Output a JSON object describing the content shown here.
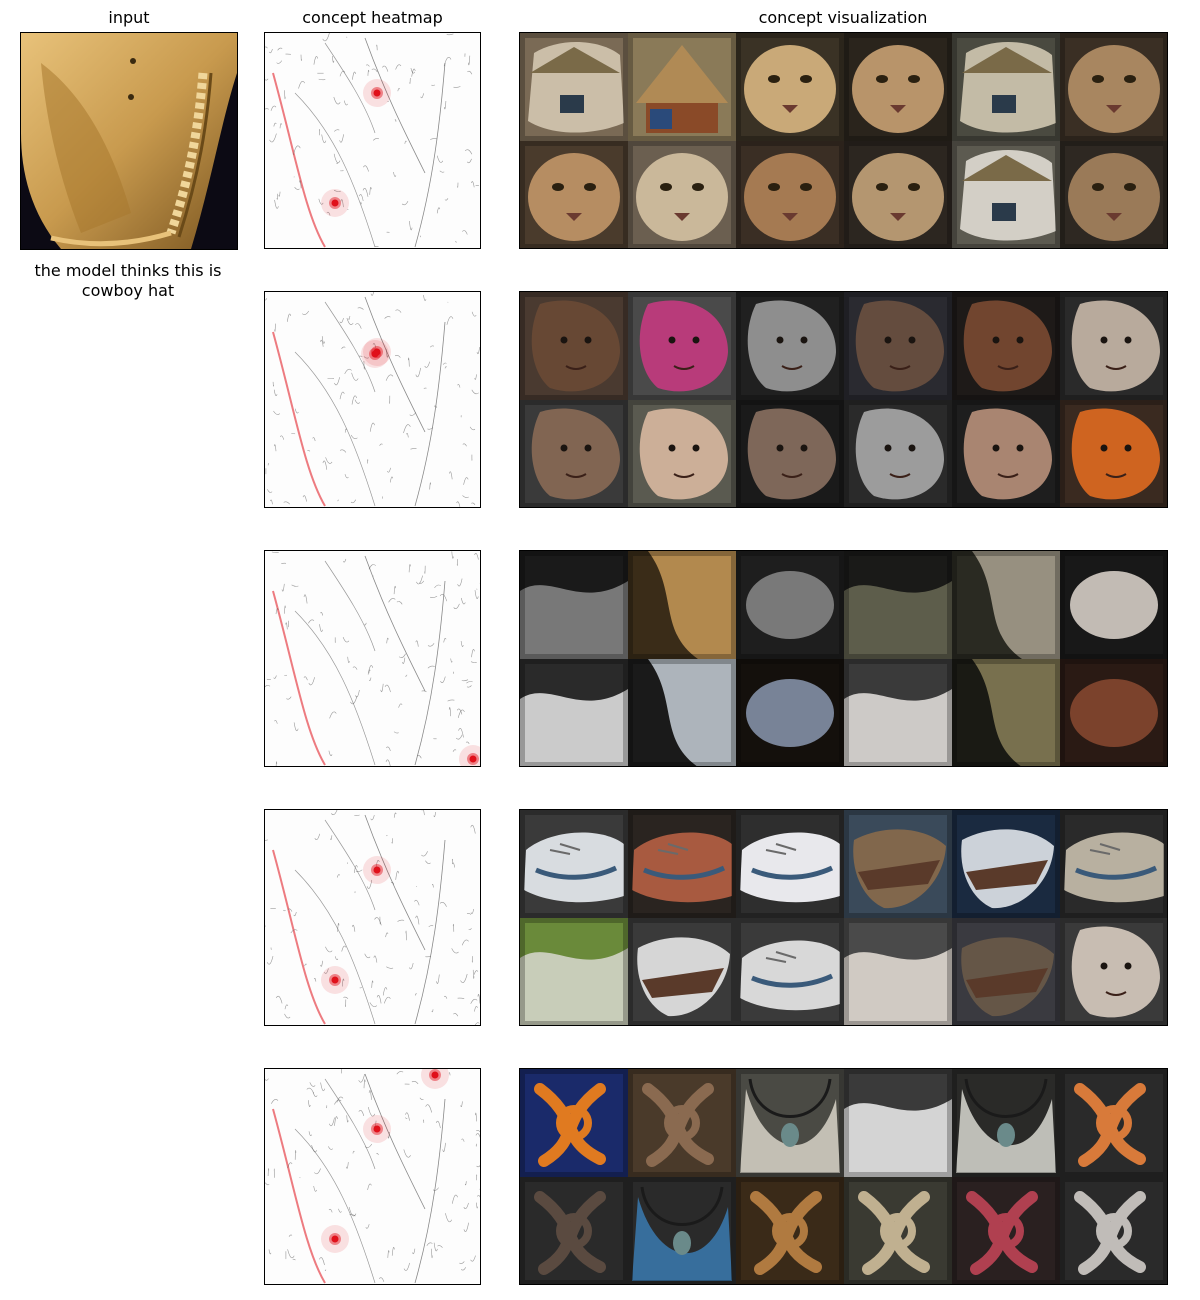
{
  "headers": {
    "input": "input",
    "heatmap": "concept heatmap",
    "visualization": "concept visualization"
  },
  "caption": {
    "line1": "the model thinks this is",
    "line2": "cowboy hat"
  },
  "colors": {
    "heatmap_red": "#e0101a",
    "hat_gold": "#c89a4e",
    "background": "#ffffff"
  },
  "concepts": [
    {
      "heat_spots": [
        "upper-center",
        "center"
      ],
      "tiles": [
        {
          "bg": "#7a6a55",
          "fg": "#d9cdb7",
          "shape": "house"
        },
        {
          "bg": "#8a7a58",
          "fg": "#b08a55",
          "shape": "hut"
        },
        {
          "bg": "#3a3225",
          "fg": "#c9a978",
          "shape": "cat"
        },
        {
          "bg": "#2a241c",
          "fg": "#b8946a",
          "shape": "cat"
        },
        {
          "bg": "#4a4a40",
          "fg": "#d8cfb8",
          "shape": "house"
        },
        {
          "bg": "#3a2f24",
          "fg": "#a88660",
          "shape": "cat"
        },
        {
          "bg": "#4a3b2c",
          "fg": "#b68d62",
          "shape": "cat"
        },
        {
          "bg": "#6b5f50",
          "fg": "#cab89a",
          "shape": "cat"
        },
        {
          "bg": "#3a2e24",
          "fg": "#a57a52",
          "shape": "cat"
        },
        {
          "bg": "#2c2620",
          "fg": "#b49670",
          "shape": "cat"
        },
        {
          "bg": "#5c5a50",
          "fg": "#e8e4da",
          "shape": "house"
        },
        {
          "bg": "#2e2822",
          "fg": "#9a7a58",
          "shape": "cat"
        }
      ]
    },
    {
      "heat_spots": [
        "upper-center",
        "upper-center-2"
      ],
      "tiles": [
        {
          "bg": "#4a3a30",
          "fg": "#6a4a35",
          "shape": "face"
        },
        {
          "bg": "#4a4a4a",
          "fg": "#c43a80",
          "shape": "face"
        },
        {
          "bg": "#202020",
          "fg": "#9a9a9a",
          "shape": "face"
        },
        {
          "bg": "#2a2a30",
          "fg": "#6a5040",
          "shape": "face"
        },
        {
          "bg": "#1e1a18",
          "fg": "#7a4a32",
          "shape": "face"
        },
        {
          "bg": "#2a2a2a",
          "fg": "#c8b8a8",
          "shape": "face"
        },
        {
          "bg": "#3a3a3a",
          "fg": "#8a6a55",
          "shape": "face"
        },
        {
          "bg": "#5a5a50",
          "fg": "#d8b8a0",
          "shape": "face"
        },
        {
          "bg": "#1a1a1a",
          "fg": "#8a7060",
          "shape": "face"
        },
        {
          "bg": "#2a2a2a",
          "fg": "#a8a8a8",
          "shape": "face"
        },
        {
          "bg": "#1e1e1e",
          "fg": "#b8907a",
          "shape": "face"
        },
        {
          "bg": "#3a2a20",
          "fg": "#e06a20",
          "shape": "face"
        }
      ]
    },
    {
      "heat_spots": [
        "bottom-right"
      ],
      "tiles": [
        {
          "bg": "#1a1a1a",
          "fg": "#8a8a8a",
          "shape": "abstract"
        },
        {
          "bg": "#3a2c18",
          "fg": "#c89a58",
          "shape": "abstract"
        },
        {
          "bg": "#1e1e1e",
          "fg": "#8a8a8a",
          "shape": "abstract"
        },
        {
          "bg": "#1a1a18",
          "fg": "#6a6a55",
          "shape": "abstract"
        },
        {
          "bg": "#2a2a22",
          "fg": "#aaa290",
          "shape": "abstract"
        },
        {
          "bg": "#181818",
          "fg": "#e0d8d0",
          "shape": "abstract"
        },
        {
          "bg": "#2a2a2a",
          "fg": "#e8e8e8",
          "shape": "abstract"
        },
        {
          "bg": "#1a1a1a",
          "fg": "#c8d0d8",
          "shape": "abstract"
        },
        {
          "bg": "#14100c",
          "fg": "#8a98b0",
          "shape": "abstract"
        },
        {
          "bg": "#3a3a3a",
          "fg": "#e8e4e0",
          "shape": "abstract"
        },
        {
          "bg": "#1a1a14",
          "fg": "#8a8058",
          "shape": "abstract"
        },
        {
          "bg": "#2a1a14",
          "fg": "#8a4a30",
          "shape": "abstract"
        }
      ]
    },
    {
      "heat_spots": [
        "upper-center",
        "center"
      ],
      "tiles": [
        {
          "bg": "#3a3a3a",
          "fg": "#d8dce0",
          "shape": "shoe"
        },
        {
          "bg": "#2a2420",
          "fg": "#a85a40",
          "shape": "shoe"
        },
        {
          "bg": "#2e2e2e",
          "fg": "#e8e8ec",
          "shape": "shoe"
        },
        {
          "bg": "#3a4a5a",
          "fg": "#8a6a4a",
          "shape": "boat"
        },
        {
          "bg": "#1a2a40",
          "fg": "#e0e4ea",
          "shape": "boat"
        },
        {
          "bg": "#2a2a2a",
          "fg": "#b8b0a0",
          "shape": "shoe"
        },
        {
          "bg": "#6a8a3a",
          "fg": "#d8d8d0",
          "shape": "abstract"
        },
        {
          "bg": "#3a3a3a",
          "fg": "#e8e8e8",
          "shape": "boat"
        },
        {
          "bg": "#3a3a3a",
          "fg": "#d8d8d8",
          "shape": "shoe"
        },
        {
          "bg": "#4a4a4a",
          "fg": "#e8e0d8",
          "shape": "abstract"
        },
        {
          "bg": "#3a3a40",
          "fg": "#6a5a48",
          "shape": "boat"
        },
        {
          "bg": "#3a3a3a",
          "fg": "#d8ccc0",
          "shape": "face"
        }
      ]
    },
    {
      "heat_spots": [
        "top-right",
        "upper-center",
        "center"
      ],
      "tiles": [
        {
          "bg": "#1a2a6a",
          "fg": "#e07a20",
          "shape": "knot"
        },
        {
          "bg": "#4a3a2a",
          "fg": "#8a6a50",
          "shape": "knot"
        },
        {
          "bg": "#4a4a44",
          "fg": "#d8d4c8",
          "shape": "necklace"
        },
        {
          "bg": "#3a3a3a",
          "fg": "#f0f0f0",
          "shape": "abstract"
        },
        {
          "bg": "#2a2a28",
          "fg": "#d8d8d0",
          "shape": "necklace"
        },
        {
          "bg": "#2a2a2a",
          "fg": "#d87a3a",
          "shape": "knot"
        },
        {
          "bg": "#2a2a2a",
          "fg": "#5a4a40",
          "shape": "knot"
        },
        {
          "bg": "#2a2a2a",
          "fg": "#3a7ab0",
          "shape": "necklace"
        },
        {
          "bg": "#3a2a18",
          "fg": "#b07a40",
          "shape": "knot"
        },
        {
          "bg": "#3a3a32",
          "fg": "#c0b090",
          "shape": "knot"
        },
        {
          "bg": "#2a2020",
          "fg": "#b04050",
          "shape": "knot"
        },
        {
          "bg": "#2a2a2a",
          "fg": "#c0bcb8",
          "shape": "knot"
        }
      ]
    }
  ]
}
